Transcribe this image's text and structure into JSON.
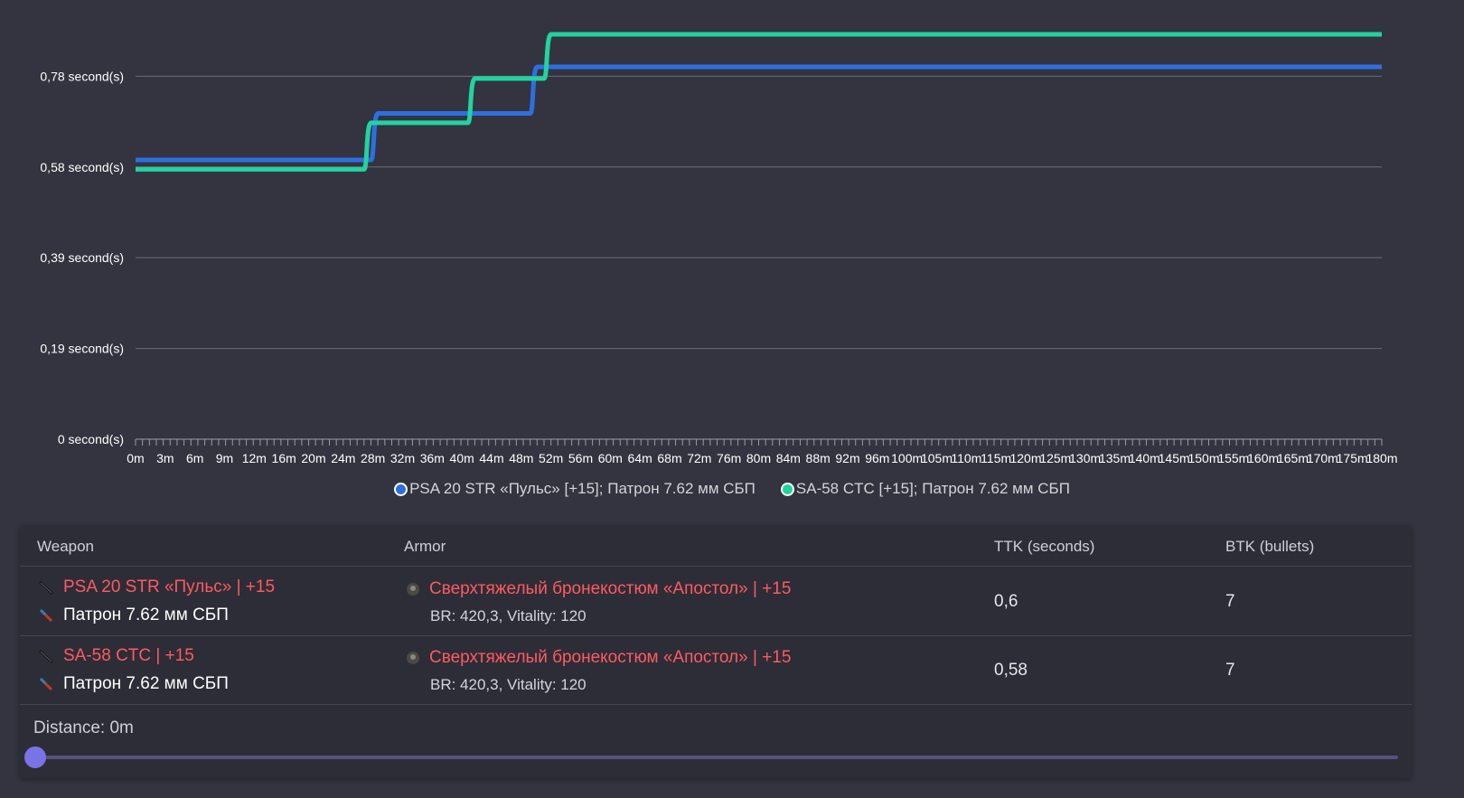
{
  "chart_data": {
    "type": "line",
    "step": true,
    "x_categories": [
      "0m",
      "3m",
      "6m",
      "9m",
      "12m",
      "16m",
      "20m",
      "24m",
      "28m",
      "32m",
      "36m",
      "40m",
      "44m",
      "48m",
      "52m",
      "56m",
      "60m",
      "64m",
      "68m",
      "72m",
      "76m",
      "80m",
      "84m",
      "88m",
      "92m",
      "96m",
      "100m",
      "105m",
      "110m",
      "115m",
      "120m",
      "125m",
      "130m",
      "135m",
      "140m",
      "145m",
      "150m",
      "155m",
      "160m",
      "165m",
      "170m",
      "175m",
      "180m"
    ],
    "x_range": [
      0,
      180
    ],
    "y_ticks": [
      {
        "value": 0,
        "label": "0 second(s)"
      },
      {
        "value": 0.195,
        "label": "0,19 second(s)"
      },
      {
        "value": 0.39,
        "label": "0,39 second(s)"
      },
      {
        "value": 0.585,
        "label": "0,58 second(s)"
      },
      {
        "value": 0.78,
        "label": "0,78 second(s)"
      }
    ],
    "ylim": [
      0,
      0.87
    ],
    "grid": true,
    "legend_position": "bottom",
    "series": [
      {
        "name": "PSA 20 STR «Пульс» [+15]; Патрон 7.62 мм СБП",
        "color": "#2e6fe0",
        "points": [
          [
            0,
            0.6
          ],
          [
            34,
            0.6
          ],
          [
            34,
            0.7
          ],
          [
            57,
            0.7
          ],
          [
            57,
            0.8
          ],
          [
            180,
            0.8
          ]
        ]
      },
      {
        "name": "SA-58 CTC [+15]; Патрон 7.62 мм СБП",
        "color": "#22d3a0",
        "points": [
          [
            0,
            0.58
          ],
          [
            33,
            0.58
          ],
          [
            33,
            0.68
          ],
          [
            48,
            0.68
          ],
          [
            48,
            0.775
          ],
          [
            59,
            0.775
          ],
          [
            59,
            0.87
          ],
          [
            180,
            0.87
          ]
        ]
      }
    ]
  },
  "table": {
    "headers": {
      "weapon": "Weapon",
      "armor": "Armor",
      "ttk": "TTK (seconds)",
      "btk": "BTK (bullets)"
    },
    "rows": [
      {
        "weapon": "PSA 20 STR «Пульс» | +15",
        "ammo": "Патрон 7.62 мм СБП",
        "armor": "Сверхтяжелый бронекостюм «Апостол» | +15",
        "armor_stats": "BR: 420,3, Vitality: 120",
        "ttk": "0,6",
        "btk": "7"
      },
      {
        "weapon": "SA-58 CTC | +15",
        "ammo": "Патрон 7.62 мм СБП",
        "armor": "Сверхтяжелый бронекостюм «Апостол» | +15",
        "armor_stats": "BR: 420,3, Vitality: 120",
        "ttk": "0,58",
        "btk": "7"
      }
    ]
  },
  "distance": {
    "label": "Distance: 0m",
    "value": 0,
    "min": 0,
    "max": 180
  }
}
